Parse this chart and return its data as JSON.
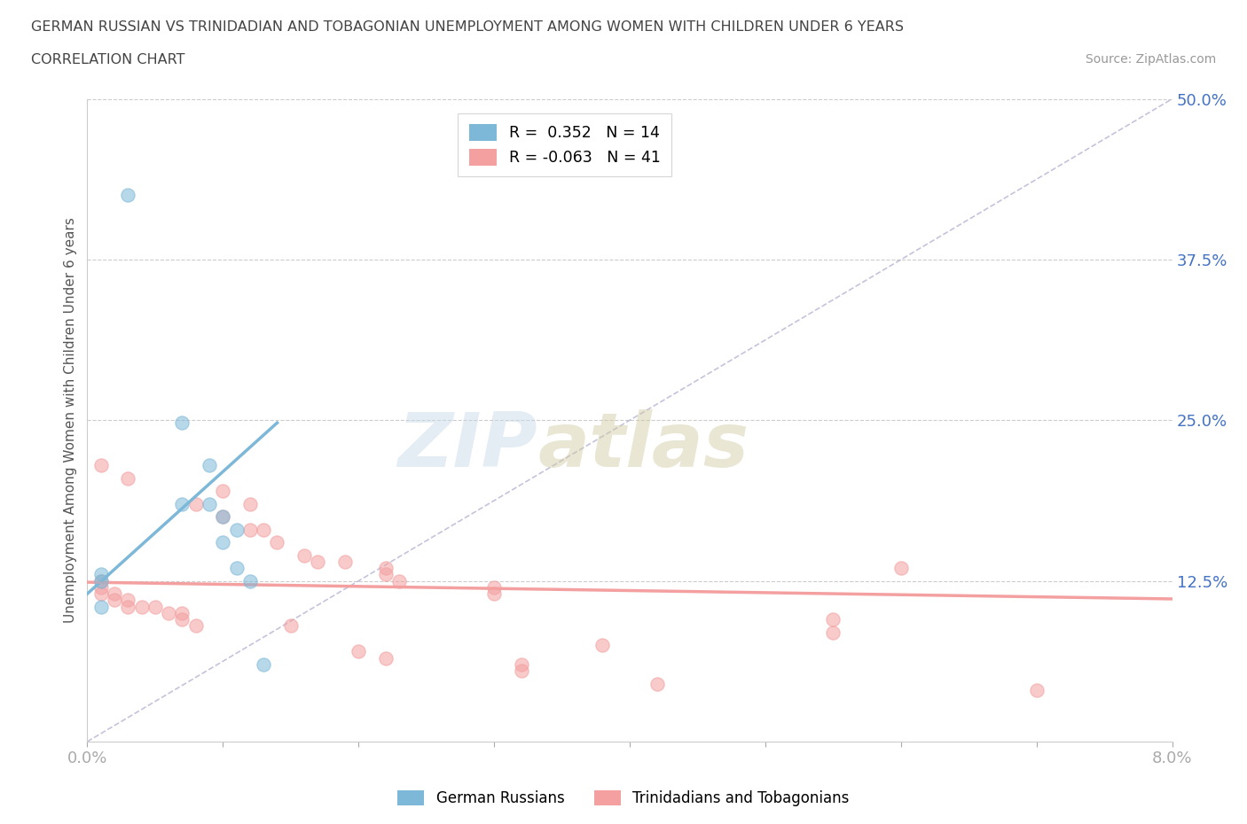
{
  "title_line1": "GERMAN RUSSIAN VS TRINIDADIAN AND TOBAGONIAN UNEMPLOYMENT AMONG WOMEN WITH CHILDREN UNDER 6 YEARS",
  "title_line2": "CORRELATION CHART",
  "source_text": "Source: ZipAtlas.com",
  "ylabel": "Unemployment Among Women with Children Under 6 years",
  "xlim": [
    0.0,
    0.08
  ],
  "ylim": [
    0.0,
    0.5
  ],
  "xticks": [
    0.0,
    0.01,
    0.02,
    0.03,
    0.04,
    0.05,
    0.06,
    0.07,
    0.08
  ],
  "xtick_labels": [
    "0.0%",
    "",
    "",
    "",
    "",
    "",
    "",
    "",
    "8.0%"
  ],
  "yticks": [
    0.0,
    0.125,
    0.25,
    0.375,
    0.5
  ],
  "ytick_labels": [
    "",
    "12.5%",
    "25.0%",
    "37.5%",
    "50.0%"
  ],
  "blue_color": "#7db8d8",
  "pink_color": "#f4a0a0",
  "blue_scatter": [
    [
      0.003,
      0.425
    ],
    [
      0.007,
      0.248
    ],
    [
      0.009,
      0.215
    ],
    [
      0.007,
      0.185
    ],
    [
      0.009,
      0.185
    ],
    [
      0.01,
      0.175
    ],
    [
      0.011,
      0.165
    ],
    [
      0.01,
      0.155
    ],
    [
      0.011,
      0.135
    ],
    [
      0.001,
      0.13
    ],
    [
      0.001,
      0.125
    ],
    [
      0.012,
      0.125
    ],
    [
      0.001,
      0.105
    ],
    [
      0.013,
      0.06
    ]
  ],
  "pink_scatter": [
    [
      0.001,
      0.215
    ],
    [
      0.003,
      0.205
    ],
    [
      0.01,
      0.195
    ],
    [
      0.008,
      0.185
    ],
    [
      0.012,
      0.185
    ],
    [
      0.01,
      0.175
    ],
    [
      0.013,
      0.165
    ],
    [
      0.012,
      0.165
    ],
    [
      0.014,
      0.155
    ],
    [
      0.016,
      0.145
    ],
    [
      0.017,
      0.14
    ],
    [
      0.019,
      0.14
    ],
    [
      0.022,
      0.135
    ],
    [
      0.022,
      0.13
    ],
    [
      0.023,
      0.125
    ],
    [
      0.03,
      0.12
    ],
    [
      0.03,
      0.115
    ],
    [
      0.001,
      0.125
    ],
    [
      0.001,
      0.12
    ],
    [
      0.001,
      0.115
    ],
    [
      0.002,
      0.115
    ],
    [
      0.002,
      0.11
    ],
    [
      0.003,
      0.11
    ],
    [
      0.003,
      0.105
    ],
    [
      0.004,
      0.105
    ],
    [
      0.005,
      0.105
    ],
    [
      0.006,
      0.1
    ],
    [
      0.007,
      0.1
    ],
    [
      0.007,
      0.095
    ],
    [
      0.008,
      0.09
    ],
    [
      0.015,
      0.09
    ],
    [
      0.06,
      0.135
    ],
    [
      0.055,
      0.095
    ],
    [
      0.055,
      0.085
    ],
    [
      0.038,
      0.075
    ],
    [
      0.02,
      0.07
    ],
    [
      0.022,
      0.065
    ],
    [
      0.032,
      0.06
    ],
    [
      0.032,
      0.055
    ],
    [
      0.042,
      0.045
    ],
    [
      0.07,
      0.04
    ]
  ],
  "blue_r": 0.352,
  "blue_n": 14,
  "pink_r": -0.063,
  "pink_n": 41,
  "blue_line_x": [
    0.0,
    0.014
  ],
  "blue_line_y": [
    0.115,
    0.248
  ],
  "pink_line_x": [
    0.0,
    0.08
  ],
  "pink_line_y": [
    0.124,
    0.111
  ],
  "diag_line_x": [
    0.0,
    0.08
  ],
  "diag_line_y": [
    0.0,
    0.5
  ],
  "watermark_zip": "ZIP",
  "watermark_atlas": "atlas",
  "scatter_size": 120,
  "scatter_alpha": 0.55,
  "scatter_edge_alpha": 0.8,
  "grid_color": "#cccccc",
  "diag_color": "#aaaacc",
  "axis_label_color": "#4472c4",
  "title_color": "#444444",
  "source_color": "#999999"
}
